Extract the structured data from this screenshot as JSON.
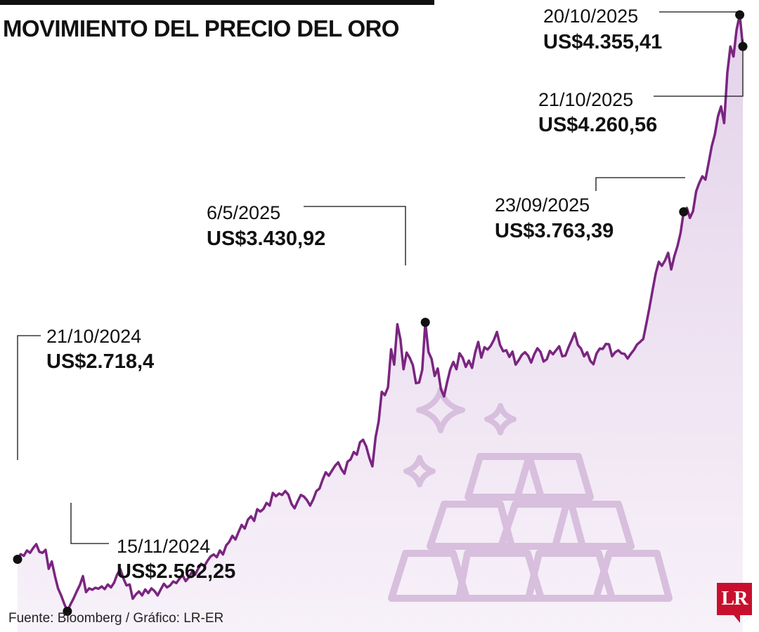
{
  "title": "MOVIMIENTO DEL PRECIO DEL ORO",
  "source": "Fuente: Bloomberg / Gráfico: LR-ER",
  "logo_text": "LR",
  "colors": {
    "line": "#7a2580",
    "fill_top": "#e4d3ea",
    "fill_bottom": "#f7f1f9",
    "icon": "#d7bfdd",
    "logo": "#c8102e"
  },
  "icons": [
    "gold-bars-icon",
    "sparkle-icon"
  ],
  "chart_data": {
    "type": "area",
    "unit": "US$",
    "x_start": "21/10/2024",
    "x_end": "21/10/2025",
    "ylim": [
      2500,
      4400
    ],
    "grid": false,
    "legend": "none",
    "series": [
      {
        "values": [
          2718.4,
          2734,
          2729,
          2745,
          2738,
          2752,
          2764,
          2741,
          2738,
          2747,
          2690,
          2712,
          2668,
          2631,
          2610,
          2585,
          2562.25,
          2583,
          2601,
          2622,
          2641,
          2668,
          2620,
          2631,
          2627,
          2633,
          2630,
          2637,
          2629,
          2643,
          2634,
          2648,
          2673,
          2689,
          2661,
          2640,
          2643,
          2600,
          2613,
          2622,
          2610,
          2628,
          2617,
          2631,
          2623,
          2610,
          2628,
          2645,
          2634,
          2640,
          2652,
          2647,
          2660,
          2671,
          2653,
          2664,
          2680,
          2672,
          2690,
          2705,
          2698,
          2714,
          2727,
          2733,
          2725,
          2745,
          2733,
          2760,
          2771,
          2789,
          2778,
          2801,
          2822,
          2811,
          2838,
          2848,
          2834,
          2869,
          2862,
          2870,
          2888,
          2880,
          2918,
          2908,
          2916,
          2912,
          2924,
          2913,
          2885,
          2872,
          2893,
          2912,
          2907,
          2896,
          2880,
          2899,
          2924,
          2931,
          2958,
          2980,
          2970,
          2985,
          3000,
          3010,
          2990,
          2976,
          3012,
          3019,
          3041,
          3033,
          3070,
          3078,
          3058,
          3024,
          2998,
          3085,
          3133,
          3222,
          3212,
          3236,
          3350,
          3304,
          3425,
          3380,
          3290,
          3340,
          3324,
          3302,
          3248,
          3250,
          3288,
          3430.92,
          3342,
          3321,
          3270,
          3292,
          3230,
          3208,
          3251,
          3290,
          3312,
          3290,
          3338,
          3324,
          3297,
          3316,
          3294,
          3340,
          3372,
          3325,
          3356,
          3349,
          3360,
          3378,
          3402,
          3363,
          3344,
          3347,
          3327,
          3343,
          3304,
          3317,
          3333,
          3341,
          3331,
          3310,
          3335,
          3353,
          3342,
          3313,
          3320,
          3345,
          3335,
          3347,
          3359,
          3329,
          3331,
          3356,
          3377,
          3399,
          3363,
          3352,
          3329,
          3341,
          3315,
          3305,
          3337,
          3352,
          3351,
          3366,
          3365,
          3329,
          3341,
          3347,
          3338,
          3336,
          3322,
          3336,
          3348,
          3364,
          3372,
          3381,
          3427,
          3475,
          3528,
          3578,
          3613,
          3601,
          3617,
          3640,
          3590,
          3630,
          3660,
          3700,
          3763.39,
          3775,
          3745,
          3765,
          3825,
          3850,
          3870,
          3860,
          3910,
          3960,
          3995,
          4050,
          4080,
          4030,
          4180,
          4260,
          4230,
          4311,
          4355.41,
          4260.56
        ]
      }
    ],
    "annotations": [
      {
        "date": "21/10/2024",
        "value": "US$2.718,4"
      },
      {
        "date": "15/11/2024",
        "value": "US$2.562,25"
      },
      {
        "date": "6/5/2025",
        "value": "US$3.430,92"
      },
      {
        "date": "23/09/2025",
        "value": "US$3.763,39"
      },
      {
        "date": "20/10/2025",
        "value": "US$4.355,41"
      },
      {
        "date": "21/10/2025",
        "value": "US$4.260,56"
      }
    ]
  }
}
